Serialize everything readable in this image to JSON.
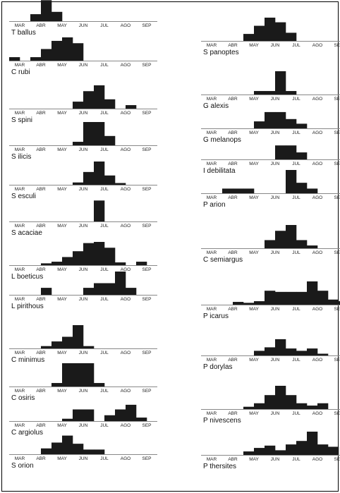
{
  "chart_data": {
    "type": "bar",
    "months": [
      "MAR",
      "ABR",
      "MAY",
      "JUN",
      "JUL",
      "AGO",
      "SEP"
    ],
    "bins_per_month": 2,
    "value_scale": "relative abundance (0-1) per half-month",
    "colors": {
      "bar": "#1a1a1a",
      "axis": "#888888"
    },
    "panels": [
      {
        "species": "T ballus",
        "values": [
          0,
          0,
          0.3,
          0.9,
          0.4,
          0,
          0,
          0,
          0,
          0,
          0,
          0,
          0,
          0
        ]
      },
      {
        "species": "C rubi",
        "values": [
          0.15,
          0,
          0.15,
          0.5,
          0.85,
          1,
          0.75,
          0,
          0,
          0,
          0,
          0,
          0,
          0
        ]
      },
      {
        "species": "S spini",
        "values": [
          0,
          0,
          0,
          0,
          0,
          0,
          0.3,
          0.75,
          1,
          0.4,
          0,
          0.15,
          0,
          0
        ]
      },
      {
        "species": "S ilicis",
        "values": [
          0,
          0,
          0,
          0,
          0,
          0,
          0.15,
          1,
          1,
          0.4,
          0,
          0,
          0,
          0
        ]
      },
      {
        "species": "S esculi",
        "values": [
          0,
          0,
          0,
          0,
          0,
          0,
          0.1,
          0.55,
          1,
          0.4,
          0.05,
          0,
          0,
          0
        ]
      },
      {
        "species": "S acaciae",
        "values": [
          0,
          0,
          0,
          0,
          0,
          0,
          0,
          0,
          0.9,
          0,
          0,
          0,
          0,
          0
        ]
      },
      {
        "species": "L boeticus",
        "values": [
          0,
          0,
          0,
          0.08,
          0.15,
          0.35,
          0.6,
          0.95,
          1,
          0.75,
          0.12,
          0,
          0.15,
          0
        ]
      },
      {
        "species": "L pirithous",
        "values": [
          0,
          0,
          0,
          0.3,
          0,
          0,
          0,
          0.3,
          0.5,
          0.5,
          1,
          0.3,
          0,
          0
        ]
      },
      {
        "species": "C minimus",
        "values": [
          0,
          0,
          0,
          0.1,
          0.3,
          0.5,
          1,
          0.1,
          0,
          0,
          0,
          0,
          0,
          0
        ]
      },
      {
        "species": "C osiris",
        "values": [
          0,
          0,
          0,
          0,
          0.15,
          1,
          1,
          1,
          0.15,
          0,
          0,
          0,
          0,
          0
        ]
      },
      {
        "species": "C argiolus",
        "values": [
          0,
          0,
          0,
          0,
          0,
          0.1,
          0.5,
          0.5,
          0,
          0.25,
          0.5,
          0.7,
          0.15,
          0
        ]
      },
      {
        "species": "S orion",
        "values": [
          0,
          0,
          0,
          0.25,
          0.5,
          0.8,
          0.45,
          0.2,
          0.2,
          0,
          0,
          0,
          0,
          0
        ]
      },
      {
        "species": "S panoptes",
        "values": [
          0,
          0,
          0,
          0,
          0.3,
          0.65,
          1,
          0.8,
          0.35,
          0,
          0,
          0,
          0,
          0
        ]
      },
      {
        "species": "G alexis",
        "values": [
          0,
          0,
          0,
          0,
          0,
          0.15,
          0.15,
          1,
          0.15,
          0,
          0,
          0,
          0,
          0
        ]
      },
      {
        "species": "G melanops",
        "values": [
          0,
          0,
          0,
          0,
          0,
          0.3,
          0.7,
          0.7,
          0.4,
          0.2,
          0,
          0,
          0,
          0
        ]
      },
      {
        "species": "I debilitata",
        "values": [
          0,
          0,
          0,
          0,
          0,
          0,
          0,
          0.6,
          0.6,
          0.3,
          0,
          0,
          0,
          0
        ]
      },
      {
        "species": "P arion",
        "values": [
          0,
          0,
          0.2,
          0.2,
          0.2,
          0,
          0,
          0,
          1,
          0.45,
          0.2,
          0,
          0,
          0
        ]
      },
      {
        "species": "C semiargus",
        "values": [
          0,
          0,
          0,
          0,
          0,
          0,
          0.35,
          0.75,
          1,
          0.35,
          0.12,
          0,
          0,
          0
        ]
      },
      {
        "species": "P icarus",
        "values": [
          0,
          0,
          0,
          0.12,
          0.08,
          0.15,
          0.6,
          0.55,
          0.55,
          0.55,
          1,
          0.6,
          0.22,
          0.15
        ]
      },
      {
        "species": "P dorylas",
        "values": [
          0,
          0,
          0,
          0,
          0,
          0.2,
          0.35,
          0.7,
          0.3,
          0.2,
          0.3,
          0.05,
          0,
          0
        ]
      },
      {
        "species": "P nivescens",
        "values": [
          0,
          0,
          0,
          0,
          0.1,
          0.25,
          0.6,
          1,
          0.6,
          0.25,
          0.15,
          0.25,
          0,
          0
        ]
      },
      {
        "species": "P thersites",
        "values": [
          0,
          0,
          0,
          0,
          0.15,
          0.3,
          0.4,
          0.2,
          0.45,
          0.6,
          1,
          0.45,
          0.35,
          0
        ]
      }
    ]
  }
}
